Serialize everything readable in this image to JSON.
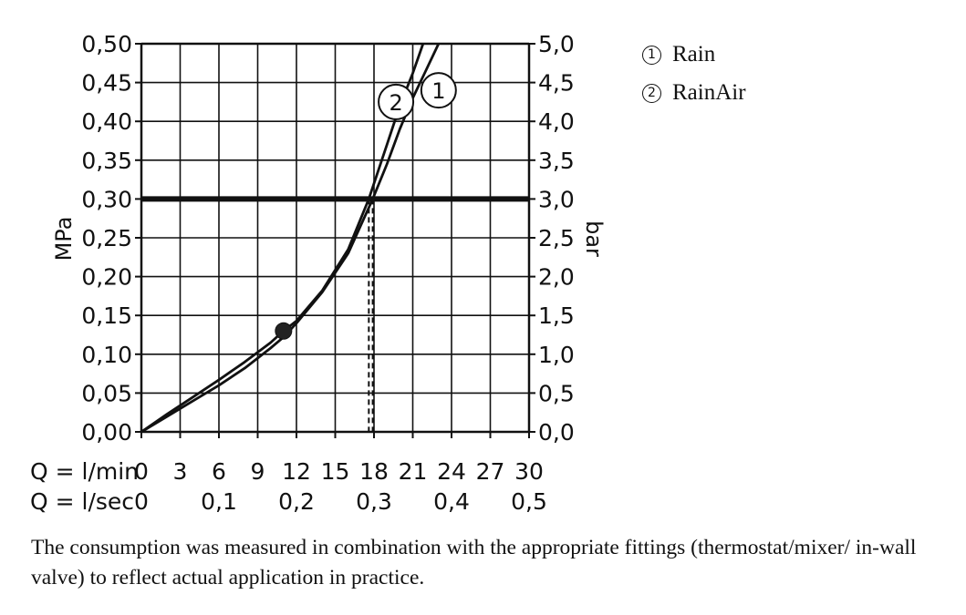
{
  "chart_data": {
    "type": "line",
    "left_axis": {
      "label": "MPa",
      "ticks": [
        "0,00",
        "0,05",
        "0,10",
        "0,15",
        "0,20",
        "0,25",
        "0,30",
        "0,35",
        "0,40",
        "0,45",
        "0,50"
      ],
      "ylim": [
        0,
        0.5
      ]
    },
    "right_axis": {
      "label": "bar",
      "ticks": [
        "0,0",
        "0,5",
        "1,0",
        "1,5",
        "2,0",
        "2,5",
        "3,0",
        "3,5",
        "4,0",
        "4,5",
        "5,0"
      ],
      "ylim": [
        0,
        5.0
      ]
    },
    "x_axis_lmin": {
      "label": "Q = l/min",
      "ticks": [
        "0",
        "3",
        "6",
        "9",
        "12",
        "15",
        "18",
        "21",
        "24",
        "27",
        "30"
      ],
      "xlim": [
        0,
        30
      ]
    },
    "x_axis_lsec": {
      "label": "Q = l/sec",
      "ticks": [
        "0",
        "0,1",
        "0,2",
        "0,3",
        "0,4",
        "0,5"
      ]
    },
    "grid": true,
    "reference_line": {
      "y": 0.3
    },
    "operating_points": [
      {
        "series": "1",
        "x": 17.9
      },
      {
        "series": "2",
        "x": 17.6
      }
    ],
    "marker_point": {
      "x": 11.0,
      "y": 0.13
    },
    "series": [
      {
        "id": "1",
        "label": "1",
        "label_at": [
          23.0,
          0.44
        ],
        "points": [
          [
            0,
            0
          ],
          [
            2,
            0.02
          ],
          [
            4,
            0.04
          ],
          [
            6,
            0.06
          ],
          [
            8,
            0.082
          ],
          [
            10,
            0.108
          ],
          [
            11,
            0.122
          ],
          [
            12,
            0.14
          ],
          [
            14,
            0.18
          ],
          [
            16,
            0.23
          ],
          [
            17.9,
            0.3
          ],
          [
            19,
            0.345
          ],
          [
            20,
            0.39
          ],
          [
            21,
            0.43
          ],
          [
            22,
            0.465
          ],
          [
            23,
            0.5
          ]
        ]
      },
      {
        "id": "2",
        "label": "2",
        "label_at": [
          19.7,
          0.425
        ],
        "points": [
          [
            0,
            0
          ],
          [
            2,
            0.023
          ],
          [
            4,
            0.045
          ],
          [
            6,
            0.067
          ],
          [
            8,
            0.09
          ],
          [
            10,
            0.115
          ],
          [
            11,
            0.13
          ],
          [
            12,
            0.143
          ],
          [
            14,
            0.182
          ],
          [
            16,
            0.235
          ],
          [
            17.6,
            0.3
          ],
          [
            19,
            0.37
          ],
          [
            20,
            0.42
          ],
          [
            21,
            0.462
          ],
          [
            21.8,
            0.5
          ]
        ]
      }
    ]
  },
  "legend": [
    {
      "num": "1",
      "label": "Rain"
    },
    {
      "num": "2",
      "label": "RainAir"
    }
  ],
  "caption": "The consumption was measured in combination with the appropriate fittings (thermostat/mixer/ in-wall valve) to reflect actual application in practice."
}
